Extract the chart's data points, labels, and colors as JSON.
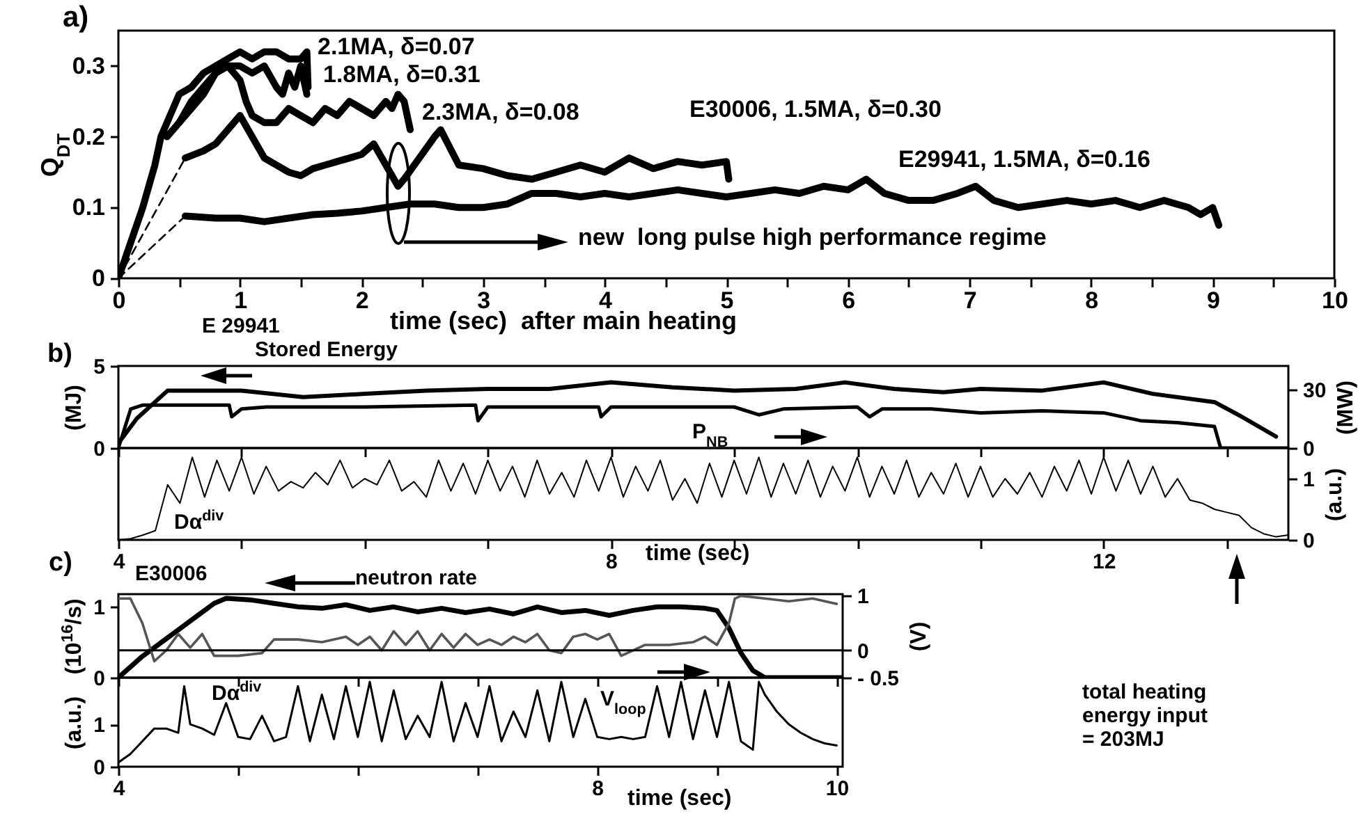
{
  "chart_data": [
    {
      "type": "line",
      "title": "a)",
      "xlabel": "time (sec)  after main heating",
      "ylabel": "Q$_{DT}$",
      "xlim": [
        0,
        10
      ],
      "ylim": [
        0,
        0.35
      ],
      "xticks": [
        0,
        {
          "value": 0.5,
          "label": null
        },
        1,
        {
          "value": 1.5,
          "label": null
        },
        2,
        {
          "value": 2.5,
          "label": null
        },
        3,
        {
          "value": 3.5,
          "label": null
        },
        4,
        {
          "value": 4.5,
          "label": null
        },
        5,
        {
          "value": 5.5,
          "label": null
        },
        6,
        {
          "value": 6.5,
          "label": null
        },
        7,
        {
          "value": 7.5,
          "label": null
        },
        8,
        {
          "value": 8.5,
          "label": null
        },
        9,
        {
          "value": 9.5,
          "label": null
        },
        10
      ],
      "yticks": [
        0,
        0.1,
        0.2,
        0.3
      ],
      "series": [
        {
          "color": "#000000",
          "x": [
            0,
            0.2,
            0.3,
            0.35,
            0.4,
            0.45,
            0.5,
            0.6,
            0.7,
            0.8,
            0.9,
            1.0,
            1.1,
            1.2,
            1.3,
            1.4,
            1.5,
            1.55,
            1.56
          ],
          "values": [
            0,
            0.1,
            0.16,
            0.2,
            0.22,
            0.24,
            0.26,
            0.27,
            0.29,
            0.3,
            0.31,
            0.32,
            0.31,
            0.32,
            0.32,
            0.31,
            0.31,
            0.32,
            0.27
          ]
        },
        {
          "color": "#000000",
          "x": [
            0.5,
            0.6,
            0.7,
            0.8,
            0.9,
            1.0,
            1.1,
            1.2,
            1.3,
            1.35,
            1.4,
            1.45,
            1.5,
            1.55
          ],
          "values": [
            0.22,
            0.25,
            0.27,
            0.29,
            0.3,
            0.3,
            0.29,
            0.3,
            0.27,
            0.26,
            0.29,
            0.27,
            0.3,
            0.26
          ]
        },
        {
          "color": "#000000",
          "x": [
            0.4,
            0.5,
            0.6,
            0.7,
            0.8,
            0.9,
            1.0,
            1.05,
            1.1,
            1.2,
            1.3,
            1.4,
            1.5,
            1.6,
            1.7,
            1.8,
            1.9,
            2.0,
            2.1,
            2.2,
            2.25,
            2.3,
            2.35,
            2.4
          ],
          "values": [
            0.2,
            0.22,
            0.24,
            0.26,
            0.29,
            0.3,
            0.28,
            0.25,
            0.23,
            0.22,
            0.22,
            0.24,
            0.23,
            0.22,
            0.24,
            0.23,
            0.25,
            0.24,
            0.23,
            0.25,
            0.24,
            0.26,
            0.25,
            0.21
          ]
        },
        {
          "color": "#000000",
          "x": [
            0.55,
            0.7,
            0.8,
            0.9,
            1.0,
            1.1,
            1.2,
            1.3,
            1.4,
            1.5,
            1.6,
            1.7,
            1.8,
            1.9,
            2.0,
            2.1,
            2.2,
            2.3,
            2.35,
            2.6,
            2.65,
            2.8,
            3.0,
            3.2,
            3.4,
            3.6,
            3.8,
            4.0,
            4.2,
            4.4,
            4.6,
            4.8,
            5.0,
            5.02
          ],
          "values": [
            0.17,
            0.18,
            0.19,
            0.21,
            0.23,
            0.2,
            0.17,
            0.16,
            0.15,
            0.145,
            0.155,
            0.16,
            0.165,
            0.17,
            0.175,
            0.19,
            0.16,
            0.13,
            0.14,
            0.2,
            0.21,
            0.16,
            0.155,
            0.145,
            0.14,
            0.15,
            0.16,
            0.15,
            0.17,
            0.155,
            0.165,
            0.16,
            0.165,
            0.14
          ]
        },
        {
          "color": "#000000",
          "x": [
            0.55,
            0.8,
            1.0,
            1.2,
            1.4,
            1.6,
            1.8,
            2.0,
            2.2,
            2.4,
            2.6,
            2.8,
            3.0,
            3.2,
            3.4,
            3.6,
            3.8,
            4.0,
            4.2,
            4.4,
            4.6,
            4.8,
            5.0,
            5.2,
            5.4,
            5.6,
            5.8,
            6.0,
            6.15,
            6.3,
            6.5,
            6.7,
            6.9,
            7.05,
            7.2,
            7.4,
            7.6,
            7.8,
            8.0,
            8.2,
            8.4,
            8.6,
            8.8,
            8.9,
            9.0,
            9.05
          ],
          "values": [
            0.088,
            0.085,
            0.085,
            0.08,
            0.085,
            0.09,
            0.092,
            0.095,
            0.1,
            0.105,
            0.105,
            0.1,
            0.1,
            0.105,
            0.12,
            0.12,
            0.115,
            0.12,
            0.115,
            0.12,
            0.125,
            0.12,
            0.115,
            0.12,
            0.125,
            0.12,
            0.13,
            0.125,
            0.14,
            0.12,
            0.11,
            0.11,
            0.12,
            0.13,
            0.11,
            0.1,
            0.105,
            0.11,
            0.105,
            0.11,
            0.1,
            0.11,
            0.1,
            0.09,
            0.1,
            0.075
          ]
        },
        {
          "color": "#000000",
          "line_style": "dashed",
          "x": [
            0,
            0.55
          ],
          "values": [
            0,
            0.17
          ]
        },
        {
          "color": "#000000",
          "line_style": "dashed",
          "x": [
            0,
            0.55
          ],
          "values": [
            0,
            0.088
          ]
        }
      ],
      "annotations": [
        "2.1MA, δ=0.07",
        "1.8MA, δ=0.31",
        "2.3MA, δ=0.08",
        "E30006, 1.5MA, δ=0.30",
        "E29941, 1.5MA, δ=0.16",
        "new  long pulse high performance regime"
      ]
    },
    {
      "type": "line",
      "title": "b)",
      "ylabel": "(MJ)",
      "y2label": "(MW)",
      "xlim": [
        4,
        13.5
      ],
      "ylim": [
        0,
        5
      ],
      "yticks": [
        0,
        5
      ],
      "y2lim": [
        0,
        42
      ],
      "y2ticks": [
        0,
        30
      ],
      "tick_labels": "y",
      "xticks": [
        4,
        5,
        6,
        7,
        8,
        9,
        10,
        11,
        12,
        13
      ],
      "series": [
        {
          "color": "#000000",
          "x": [
            4.0,
            4.15,
            4.4,
            5.0,
            5.5,
            6.0,
            6.5,
            7.0,
            7.5,
            8.0,
            8.5,
            9.0,
            9.5,
            9.9,
            10.3,
            10.7,
            11.0,
            11.5,
            12.0,
            12.4,
            12.9,
            13.1,
            13.4
          ],
          "values": [
            0.3,
            1.8,
            3.5,
            3.5,
            3.1,
            3.3,
            3.5,
            3.6,
            3.6,
            4.0,
            3.7,
            3.5,
            3.6,
            4.0,
            3.6,
            3.4,
            3.6,
            3.5,
            4.0,
            3.3,
            2.8,
            2.0,
            0.7
          ]
        },
        {
          "color": "#000000",
          "axis": "y2",
          "x": [
            4.0,
            4.1,
            4.2,
            4.9,
            4.92,
            5.0,
            5.2,
            6.0,
            6.9,
            6.92,
            7.0,
            7.9,
            7.92,
            8.0,
            9.0,
            9.2,
            9.4,
            10.0,
            10.1,
            10.2,
            10.6,
            11.0,
            11.5,
            12.0,
            12.3,
            12.6,
            12.9,
            12.95,
            13.5
          ],
          "values": [
            0,
            20,
            22,
            22,
            16,
            20,
            21,
            21,
            22,
            14,
            21,
            21,
            16,
            21,
            21,
            17,
            20,
            21,
            16,
            20,
            20,
            18,
            19,
            18,
            14,
            13,
            11,
            0,
            0
          ]
        }
      ],
      "annotations": [
        "E 29941",
        "Stored Energy",
        "P$_{NB}$"
      ]
    },
    {
      "type": "line",
      "xlabel": "time (sec)",
      "y2label": "(a.u.)",
      "xlim": [
        4,
        13.5
      ],
      "y2lim": [
        0,
        1.5
      ],
      "y2ticks": [
        0,
        1
      ],
      "xticks": [
        4,
        {
          "value": 5,
          "label": null
        },
        {
          "value": 6,
          "label": null
        },
        {
          "value": 7,
          "label": null
        },
        8,
        {
          "value": 9,
          "label": null
        },
        {
          "value": 10,
          "label": null
        },
        {
          "value": 11,
          "label": null
        },
        12,
        {
          "value": 13,
          "label": null
        }
      ],
      "series": [
        {
          "color": "#000000",
          "axis": "y2",
          "x": [
            4.0,
            4.1,
            4.2,
            4.3,
            4.4,
            4.5,
            4.6,
            4.7,
            4.8,
            4.9,
            5.0,
            5.1,
            5.2,
            5.3,
            5.4,
            5.5,
            5.6,
            5.7,
            5.8,
            5.9,
            6.0,
            6.1,
            6.2,
            6.3,
            6.4,
            6.5,
            6.6,
            6.7,
            6.8,
            6.9,
            7.0,
            7.1,
            7.2,
            7.3,
            7.4,
            7.5,
            7.6,
            7.7,
            7.8,
            7.9,
            8.0,
            8.1,
            8.2,
            8.3,
            8.4,
            8.5,
            8.6,
            8.7,
            8.8,
            8.9,
            9.0,
            9.1,
            9.2,
            9.3,
            9.4,
            9.5,
            9.6,
            9.7,
            9.8,
            9.9,
            10.0,
            10.1,
            10.2,
            10.3,
            10.4,
            10.5,
            10.6,
            10.7,
            10.8,
            10.9,
            11.0,
            11.1,
            11.2,
            11.3,
            11.4,
            11.5,
            11.6,
            11.7,
            11.8,
            11.9,
            12.0,
            12.1,
            12.2,
            12.3,
            12.4,
            12.5,
            12.6,
            12.7,
            12.8,
            12.9,
            13.0,
            13.1,
            13.2,
            13.3,
            13.4,
            13.5
          ],
          "values": [
            0.0,
            0.02,
            0.08,
            0.15,
            0.9,
            0.6,
            1.35,
            0.7,
            1.3,
            0.8,
            1.35,
            0.75,
            1.2,
            0.8,
            0.95,
            0.85,
            1.1,
            0.9,
            1.3,
            0.85,
            1.0,
            0.9,
            1.3,
            0.8,
            0.95,
            0.7,
            1.3,
            0.8,
            1.25,
            0.75,
            1.3,
            0.8,
            1.2,
            0.7,
            1.3,
            0.75,
            1.1,
            0.7,
            1.3,
            0.8,
            1.35,
            0.7,
            1.2,
            0.8,
            1.3,
            0.65,
            1.0,
            0.6,
            1.25,
            0.7,
            1.3,
            0.75,
            1.35,
            0.7,
            1.25,
            0.75,
            1.3,
            0.7,
            1.2,
            0.8,
            1.35,
            0.7,
            1.2,
            0.75,
            1.3,
            0.7,
            1.1,
            0.75,
            1.25,
            0.7,
            1.2,
            0.7,
            1.0,
            0.75,
            1.1,
            0.7,
            1.2,
            0.8,
            1.3,
            0.75,
            1.35,
            0.8,
            1.3,
            0.75,
            1.2,
            0.7,
            1.0,
            0.65,
            0.6,
            0.5,
            0.45,
            0.4,
            0.2,
            0.1,
            0.05,
            0.08
          ]
        }
      ],
      "annotations": [
        "Dα$^{div}$",
        "total heating\nenergy input\n= 203MJ"
      ]
    },
    {
      "type": "line",
      "title": "c)",
      "ylabel": "(10$^{16}$/s)",
      "y2label": "(V)",
      "xlim": [
        4,
        10.05
      ],
      "ylim": [
        0,
        1.18
      ],
      "yticks": [
        0,
        1
      ],
      "y2lim": [
        -0.5,
        1.03
      ],
      "y2ticks": [
        {
          "value": -0.5,
          "label": "- 0.5"
        },
        0,
        1
      ],
      "tick_labels": "y",
      "xticks": [
        4,
        5,
        6,
        7,
        8,
        9,
        10
      ],
      "series": [
        {
          "color": "#000000",
          "x": [
            4.0,
            4.2,
            4.4,
            4.6,
            4.8,
            4.9,
            5.1,
            5.3,
            5.5,
            5.7,
            5.9,
            6.1,
            6.3,
            6.5,
            6.7,
            6.9,
            7.1,
            7.3,
            7.5,
            7.7,
            7.9,
            8.1,
            8.3,
            8.5,
            8.7,
            8.9,
            9.0,
            9.1,
            9.2,
            9.3,
            9.4,
            10.05
          ],
          "values": [
            0,
            0.3,
            0.55,
            0.8,
            1.05,
            1.12,
            1.1,
            1.05,
            1.0,
            0.98,
            1.03,
            0.95,
            1.0,
            0.93,
            0.98,
            0.92,
            0.97,
            0.9,
            1.0,
            0.92,
            0.95,
            0.88,
            0.95,
            1.0,
            1.0,
            0.98,
            0.95,
            0.7,
            0.35,
            0.1,
            0,
            0
          ]
        },
        {
          "color": "#555555",
          "axis": "y2",
          "x": [
            4.0,
            4.1,
            4.2,
            4.3,
            4.4,
            4.5,
            4.6,
            4.7,
            4.8,
            5.0,
            5.2,
            5.3,
            5.5,
            5.7,
            5.9,
            6.0,
            6.1,
            6.2,
            6.3,
            6.4,
            6.5,
            6.6,
            6.7,
            6.8,
            6.9,
            7.0,
            7.1,
            7.2,
            7.3,
            7.4,
            7.5,
            7.6,
            7.7,
            7.8,
            7.9,
            8.0,
            8.1,
            8.2,
            8.3,
            8.4,
            8.6,
            8.8,
            8.9,
            9.0,
            9.1,
            9.15,
            9.2,
            9.4,
            9.6,
            9.8,
            10.0
          ],
          "values": [
            0.95,
            0.95,
            0.5,
            -0.2,
            0.0,
            0.3,
            0.05,
            0.3,
            -0.1,
            -0.1,
            -0.05,
            0.2,
            0.2,
            0.15,
            0.25,
            0.1,
            0.25,
            0.0,
            0.35,
            0.1,
            0.35,
            0.0,
            0.3,
            0.05,
            0.3,
            0.1,
            0.2,
            0.1,
            0.25,
            0.15,
            0.3,
            0.0,
            -0.05,
            0.25,
            0.3,
            0.2,
            0.3,
            -0.1,
            0.0,
            0.1,
            0.1,
            0.15,
            0.25,
            0.1,
            0.5,
            0.95,
            1.0,
            0.95,
            0.9,
            0.95,
            0.85
          ]
        }
      ],
      "ref_lines": [
        {
          "axis": "y2",
          "value": 0
        }
      ],
      "annotations": [
        "E30006",
        "neutron rate"
      ]
    },
    {
      "type": "line",
      "xlabel": "time (sec)",
      "ylabel": "(a.u.)",
      "xlim": [
        4,
        10.05
      ],
      "ylim": [
        0,
        2.1
      ],
      "yticks": [
        0,
        1
      ],
      "xticks": [
        4,
        {
          "value": 5,
          "label": null
        },
        {
          "value": 6,
          "label": null
        },
        {
          "value": 7,
          "label": null
        },
        8,
        {
          "value": 9,
          "label": null
        },
        10
      ],
      "series": [
        {
          "color": "#000000",
          "x": [
            4.0,
            4.1,
            4.2,
            4.3,
            4.4,
            4.5,
            4.55,
            4.6,
            4.7,
            4.8,
            4.9,
            5.0,
            5.1,
            5.2,
            5.3,
            5.4,
            5.5,
            5.6,
            5.7,
            5.8,
            5.9,
            6.0,
            6.1,
            6.2,
            6.3,
            6.4,
            6.5,
            6.6,
            6.7,
            6.8,
            6.9,
            7.0,
            7.1,
            7.2,
            7.3,
            7.4,
            7.5,
            7.6,
            7.7,
            7.8,
            7.9,
            8.0,
            8.1,
            8.2,
            8.3,
            8.4,
            8.5,
            8.6,
            8.7,
            8.8,
            8.9,
            9.0,
            9.1,
            9.2,
            9.3,
            9.35,
            9.4,
            9.5,
            9.6,
            9.7,
            9.8,
            9.9,
            10.0
          ],
          "values": [
            0.1,
            0.3,
            0.6,
            0.9,
            0.9,
            0.8,
            1.9,
            1.0,
            0.9,
            0.75,
            1.5,
            0.7,
            0.65,
            1.2,
            0.6,
            0.7,
            1.9,
            0.6,
            1.7,
            0.65,
            1.9,
            0.7,
            2.0,
            0.6,
            1.8,
            0.65,
            1.2,
            0.7,
            2.0,
            0.6,
            1.5,
            0.7,
            1.9,
            0.6,
            1.3,
            0.7,
            1.8,
            0.6,
            2.0,
            0.7,
            1.6,
            0.7,
            0.65,
            0.7,
            0.65,
            0.7,
            1.9,
            0.7,
            2.0,
            0.65,
            1.8,
            0.7,
            2.0,
            0.6,
            0.4,
            2.0,
            1.7,
            1.3,
            1.0,
            0.8,
            0.65,
            0.55,
            0.5
          ]
        }
      ],
      "annotations": [
        "Dα$^{div}$",
        "V$_{loop}$"
      ]
    }
  ]
}
